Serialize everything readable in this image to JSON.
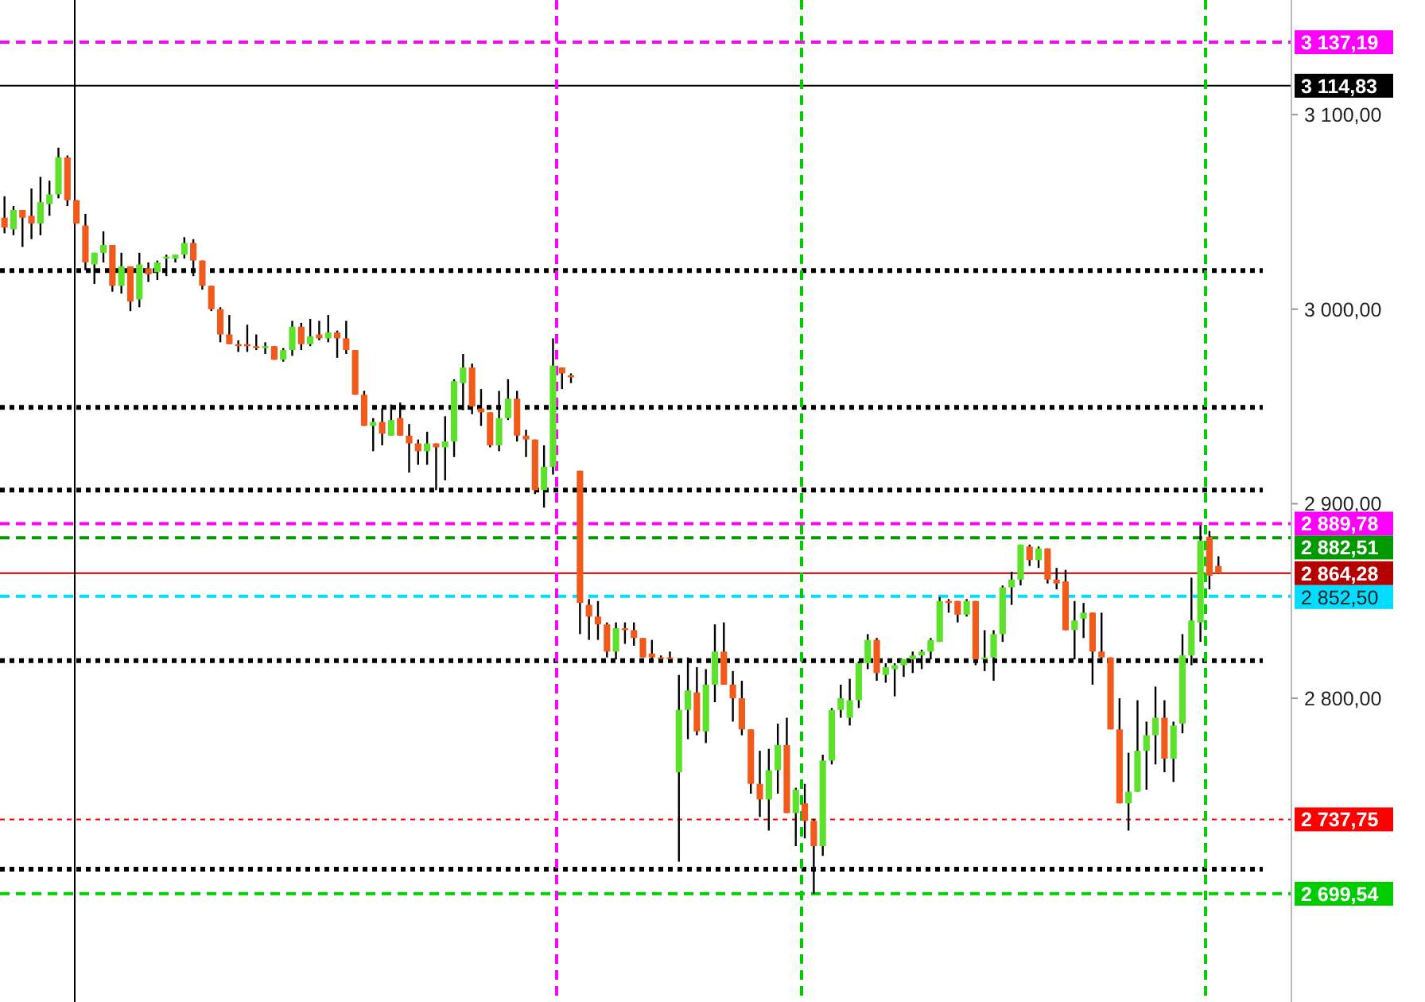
{
  "chart_data": {
    "type": "candlestick",
    "categories": [
      null,
      null,
      null,
      null,
      null,
      null,
      null,
      null,
      null,
      null,
      null,
      null,
      null,
      null,
      null,
      null,
      null,
      null,
      null,
      null,
      null,
      null,
      null,
      null,
      null,
      null,
      null,
      null,
      null,
      null,
      null,
      null,
      null,
      null,
      null,
      null,
      null,
      null,
      null,
      null,
      null,
      null,
      null,
      null,
      null,
      null,
      null,
      null,
      null,
      null,
      null,
      null,
      null,
      null,
      null,
      null,
      null,
      null,
      null,
      null,
      null,
      null,
      null,
      null,
      null,
      null,
      null,
      null,
      null,
      null,
      null,
      null,
      null,
      null,
      null,
      null,
      null,
      null,
      null,
      null,
      null,
      null,
      null,
      null,
      null,
      null,
      null,
      null,
      null,
      null,
      null,
      null,
      null,
      null,
      null,
      null,
      null,
      null,
      null,
      null,
      null,
      null,
      null,
      null,
      null,
      null,
      null,
      null,
      null,
      null,
      null,
      null,
      null,
      null,
      null,
      null,
      null,
      null,
      null,
      null,
      null,
      null,
      null,
      null,
      null,
      null,
      null,
      null,
      null,
      null,
      null,
      null,
      null,
      null,
      null,
      null
    ],
    "ohlc": [
      [
        3047,
        3058,
        3039,
        3042
      ],
      [
        3041,
        3053,
        3038,
        3051
      ],
      [
        3051,
        3051,
        3032,
        3047
      ],
      [
        3048,
        3062,
        3036,
        3044
      ],
      [
        3044,
        3068,
        3038,
        3055
      ],
      [
        3054,
        3066,
        3048,
        3059
      ],
      [
        3059,
        3083,
        3057,
        3078
      ],
      [
        3078,
        3079,
        3053,
        3056
      ],
      [
        3056,
        3056,
        3044,
        3044
      ],
      [
        3043,
        3049,
        3020,
        3024
      ],
      [
        3023,
        3029,
        3013,
        3029
      ],
      [
        3029,
        3040,
        3024,
        3033
      ],
      [
        3033,
        3033,
        3009,
        3012
      ],
      [
        3012,
        3029,
        3008,
        3022
      ],
      [
        3022,
        3022,
        2999,
        3004
      ],
      [
        3005,
        3029,
        3001,
        3023
      ],
      [
        3021,
        3024,
        3014,
        3018
      ],
      [
        3019,
        3025,
        3015,
        3024
      ],
      [
        3026,
        3028,
        3017,
        3027
      ],
      [
        3026,
        3028,
        3024,
        3028
      ],
      [
        3028,
        3037,
        3026,
        3034
      ],
      [
        3034,
        3036,
        3017,
        3025
      ],
      [
        3025,
        3025,
        3010,
        3012
      ],
      [
        3012,
        3012,
        2999,
        3000
      ],
      [
        3000,
        3001,
        2983,
        2987
      ],
      [
        2987,
        2997,
        2982,
        2982
      ],
      [
        2982,
        2984,
        2978,
        2981
      ],
      [
        2982,
        2992,
        2978,
        2981
      ],
      [
        2981,
        2987,
        2979,
        2980
      ],
      [
        2980,
        2983,
        2977,
        2981
      ],
      [
        2981,
        2981,
        2974,
        2974
      ],
      [
        2974,
        2980,
        2973,
        2979
      ],
      [
        2979,
        2994,
        2976,
        2991
      ],
      [
        2991,
        2993,
        2979,
        2982
      ],
      [
        2982,
        2995,
        2981,
        2986
      ],
      [
        2987,
        2994,
        2984,
        2985
      ],
      [
        2985,
        2997,
        2983,
        2988
      ],
      [
        2988,
        2989,
        2975,
        2985
      ],
      [
        2985,
        2994,
        2977,
        2979
      ],
      [
        2979,
        2979,
        2956,
        2956
      ],
      [
        2956,
        2958,
        2940,
        2940
      ],
      [
        2940,
        2944,
        2927,
        2942
      ],
      [
        2942,
        2949,
        2930,
        2936
      ],
      [
        2935,
        2951,
        2935,
        2943
      ],
      [
        2944,
        2952,
        2935,
        2935
      ],
      [
        2935,
        2941,
        2916,
        2931
      ],
      [
        2931,
        2933,
        2920,
        2927
      ],
      [
        2927,
        2937,
        2920,
        2931
      ],
      [
        2931,
        2931,
        2907,
        2929
      ],
      [
        2929,
        2945,
        2912,
        2932
      ],
      [
        2932,
        2964,
        2924,
        2963
      ],
      [
        2962,
        2977,
        2948,
        2970
      ],
      [
        2970,
        2972,
        2946,
        2950
      ],
      [
        2949,
        2959,
        2940,
        2947
      ],
      [
        2947,
        2947,
        2929,
        2930
      ],
      [
        2930,
        2958,
        2927,
        2944
      ],
      [
        2944,
        2964,
        2943,
        2954
      ],
      [
        2954,
        2958,
        2932,
        2935
      ],
      [
        2935,
        2938,
        2924,
        2933
      ],
      [
        2933,
        2933,
        2905,
        2907
      ],
      [
        2907,
        2930,
        2898,
        2919
      ],
      [
        2919,
        2985,
        2915,
        2971
      ],
      [
        2970,
        2970,
        2959,
        2967
      ],
      [
        2966,
        2967,
        2962,
        2965
      ],
      [
        2917,
        2917,
        2833,
        2849
      ],
      [
        2848,
        2851,
        2830,
        2842
      ],
      [
        2842,
        2850,
        2830,
        2838
      ],
      [
        2838,
        2839,
        2821,
        2824
      ],
      [
        2824,
        2839,
        2820,
        2836
      ],
      [
        2836,
        2839,
        2828,
        2835
      ],
      [
        2835,
        2839,
        2827,
        2831
      ],
      [
        2831,
        2831,
        2821,
        2821
      ],
      [
        2823,
        2830,
        2820,
        2821
      ],
      [
        2821,
        2822,
        2820,
        2821
      ],
      [
        2821,
        2824,
        2820,
        2821
      ],
      [
        2762,
        2812,
        2716,
        2794
      ],
      [
        2794,
        2821,
        2779,
        2804
      ],
      [
        2803,
        2816,
        2781,
        2783
      ],
      [
        2783,
        2815,
        2777,
        2807
      ],
      [
        2807,
        2838,
        2798,
        2824
      ],
      [
        2824,
        2839,
        2807,
        2807
      ],
      [
        2807,
        2814,
        2788,
        2800
      ],
      [
        2800,
        2809,
        2781,
        2784
      ],
      [
        2784,
        2784,
        2751,
        2756
      ],
      [
        2756,
        2773,
        2739,
        2748
      ],
      [
        2748,
        2774,
        2732,
        2763
      ],
      [
        2763,
        2787,
        2751,
        2776
      ],
      [
        2776,
        2790,
        2741,
        2741
      ],
      [
        2741,
        2754,
        2724,
        2753
      ],
      [
        2746,
        2756,
        2728,
        2737
      ],
      [
        2737,
        2738,
        2699.54,
        2724
      ],
      [
        2724,
        2771,
        2719,
        2768
      ],
      [
        2768,
        2795,
        2766,
        2794
      ],
      [
        2794,
        2807,
        2790,
        2800
      ],
      [
        2790,
        2810,
        2786,
        2799
      ],
      [
        2799,
        2819,
        2795,
        2818
      ],
      [
        2818,
        2833,
        2815,
        2830
      ],
      [
        2830,
        2831,
        2809,
        2813
      ],
      [
        2812,
        2818,
        2808,
        2816
      ],
      [
        2815,
        2818,
        2801,
        2817
      ],
      [
        2817,
        2820,
        2811,
        2820
      ],
      [
        2820,
        2824,
        2813,
        2822
      ],
      [
        2822,
        2825,
        2815,
        2824
      ],
      [
        2824,
        2831,
        2820,
        2830
      ],
      [
        2829,
        2852,
        2829,
        2850
      ],
      [
        2850,
        2851,
        2844,
        2849
      ],
      [
        2850,
        2850,
        2839,
        2843
      ],
      [
        2843,
        2851,
        2842,
        2850
      ],
      [
        2850,
        2850,
        2817,
        2820
      ],
      [
        2820,
        2835,
        2814,
        2821
      ],
      [
        2821,
        2835,
        2809,
        2833
      ],
      [
        2833,
        2858,
        2829,
        2857
      ],
      [
        2857,
        2865,
        2848,
        2861
      ],
      [
        2861,
        2879,
        2858,
        2879
      ],
      [
        2878,
        2879,
        2868,
        2871
      ],
      [
        2871,
        2878,
        2867,
        2877
      ],
      [
        2877,
        2877,
        2859,
        2861
      ],
      [
        2861,
        2867,
        2856,
        2859
      ],
      [
        2860,
        2866,
        2835,
        2835
      ],
      [
        2835,
        2850,
        2820,
        2840
      ],
      [
        2841,
        2849,
        2831,
        2844
      ],
      [
        2844,
        2844,
        2807,
        2824
      ],
      [
        2824,
        2844,
        2818,
        2821
      ],
      [
        2821,
        2821,
        2784,
        2784
      ],
      [
        2784,
        2800,
        2746,
        2746
      ],
      [
        2746,
        2772,
        2732,
        2752
      ],
      [
        2752,
        2799,
        2752,
        2773
      ],
      [
        2773,
        2788,
        2753,
        2781
      ],
      [
        2781,
        2806,
        2766,
        2790
      ],
      [
        2790,
        2799,
        2762,
        2769
      ],
      [
        2769,
        2788,
        2757,
        2786
      ],
      [
        2787,
        2833,
        2782,
        2822
      ],
      [
        2822,
        2862,
        2817,
        2840
      ],
      [
        2839,
        2889,
        2829,
        2881
      ],
      [
        2883,
        2886,
        2856,
        2863
      ],
      [
        2868,
        2873,
        2864,
        2864.28
      ]
    ],
    "colors": [
      "#f15a1b",
      "#5de22b",
      "#f15a1b",
      "#f15a1b",
      "#5de22b",
      "#5de22b",
      "#5de22b",
      "#f15a1b",
      "#f15a1b",
      "#f15a1b",
      "#5de22b",
      "#5de22b",
      "#f15a1b",
      "#5de22b",
      "#f15a1b",
      "#5de22b",
      "#f15a1b",
      "#5de22b",
      "#5de22b",
      "#5de22b",
      "#5de22b",
      "#f15a1b",
      "#f15a1b",
      "#f15a1b",
      "#f15a1b",
      "#f15a1b",
      "#f15a1b",
      "#f15a1b",
      "#f15a1b",
      "#5de22b",
      "#f15a1b",
      "#5de22b",
      "#5de22b",
      "#f15a1b",
      "#5de22b",
      "#f15a1b",
      "#5de22b",
      "#f15a1b",
      "#f15a1b",
      "#f15a1b",
      "#f15a1b",
      "#5de22b",
      "#f15a1b",
      "#5de22b",
      "#f15a1b",
      "#f15a1b",
      "#f15a1b",
      "#5de22b",
      "#f15a1b",
      "#5de22b",
      "#5de22b",
      "#5de22b",
      "#f15a1b",
      "#f15a1b",
      "#f15a1b",
      "#5de22b",
      "#5de22b",
      "#f15a1b",
      "#f15a1b",
      "#f15a1b",
      "#5de22b",
      "#5de22b",
      "#f15a1b",
      "#f15a1b",
      "#f15a1b",
      "#f15a1b",
      "#f15a1b",
      "#f15a1b",
      "#5de22b",
      "#f15a1b",
      "#f15a1b",
      "#f15a1b",
      "#f15a1b",
      "#f15a1b",
      "#f15a1b",
      "#5de22b",
      "#5de22b",
      "#f15a1b",
      "#5de22b",
      "#5de22b",
      "#f15a1b",
      "#f15a1b",
      "#f15a1b",
      "#f15a1b",
      "#f15a1b",
      "#5de22b",
      "#5de22b",
      "#f15a1b",
      "#5de22b",
      "#f15a1b",
      "#f15a1b",
      "#5de22b",
      "#5de22b",
      "#5de22b",
      "#5de22b",
      "#5de22b",
      "#5de22b",
      "#f15a1b",
      "#5de22b",
      "#5de22b",
      "#5de22b",
      "#5de22b",
      "#5de22b",
      "#5de22b",
      "#5de22b",
      "#f15a1b",
      "#f15a1b",
      "#5de22b",
      "#f15a1b",
      "#5de22b",
      "#5de22b",
      "#5de22b",
      "#5de22b",
      "#5de22b",
      "#f15a1b",
      "#5de22b",
      "#f15a1b",
      "#f15a1b",
      "#f15a1b",
      "#5de22b",
      "#5de22b",
      "#f15a1b",
      "#f15a1b",
      "#f15a1b",
      "#f15a1b",
      "#5de22b",
      "#5de22b",
      "#5de22b",
      "#5de22b",
      "#f15a1b",
      "#5de22b",
      "#5de22b",
      "#5de22b",
      "#5de22b",
      "#f15a1b",
      "#f15a1b"
    ],
    "ylim": [
      2643.9,
      3158.9
    ],
    "yticks": [
      {
        "value": 2800,
        "label": "2 800,00"
      },
      {
        "value": 2900,
        "label": "2 900,00"
      },
      {
        "value": 3000,
        "label": "3 000,00"
      },
      {
        "value": 3100,
        "label": "3 100,00"
      }
    ],
    "tick_labels": "y",
    "ref_lines": [
      {
        "axis": "y",
        "value": 3137.19,
        "label": "3 137,19",
        "color": "#ff00ff",
        "line_style": "dashed"
      },
      {
        "axis": "y",
        "value": 3114.83,
        "label": "3 114,83",
        "color": "#000000",
        "line_style": "solid"
      },
      {
        "axis": "y",
        "value": 2889.78,
        "label": "2 889,78",
        "color": "#ff00ff",
        "line_style": "dashed"
      },
      {
        "axis": "y",
        "value": 2882.51,
        "label": "2 882,51",
        "color": "#009900",
        "line_style": "dashed"
      },
      {
        "axis": "y",
        "value": 2864.28,
        "label": "2 864,28",
        "color": "#b30000",
        "line_style": "solid"
      },
      {
        "axis": "y",
        "value": 2852.5,
        "label": "2 852,50",
        "color": "#00ddff",
        "line_style": "dashed"
      },
      {
        "axis": "y",
        "value": 2737.75,
        "label": "2 737,75",
        "color": "#ff0000",
        "line_style": "dotted"
      },
      {
        "axis": "y",
        "value": 2699.54,
        "label": "2 699,54",
        "color": "#00cc00",
        "line_style": "dashed"
      },
      {
        "axis": "y",
        "value": 3019.8,
        "label": null,
        "color": "#000000",
        "line_style": "dotted"
      },
      {
        "axis": "y",
        "value": 2949.5,
        "label": null,
        "color": "#000000",
        "line_style": "dotted"
      },
      {
        "axis": "y",
        "value": 2907,
        "label": null,
        "color": "#000000",
        "line_style": "dotted"
      },
      {
        "axis": "y",
        "value": 2819.3,
        "label": null,
        "color": "#000000",
        "line_style": "dotted"
      },
      {
        "axis": "y",
        "value": 2712.2,
        "label": null,
        "color": "#000000",
        "line_style": "dotted"
      }
    ]
  }
}
